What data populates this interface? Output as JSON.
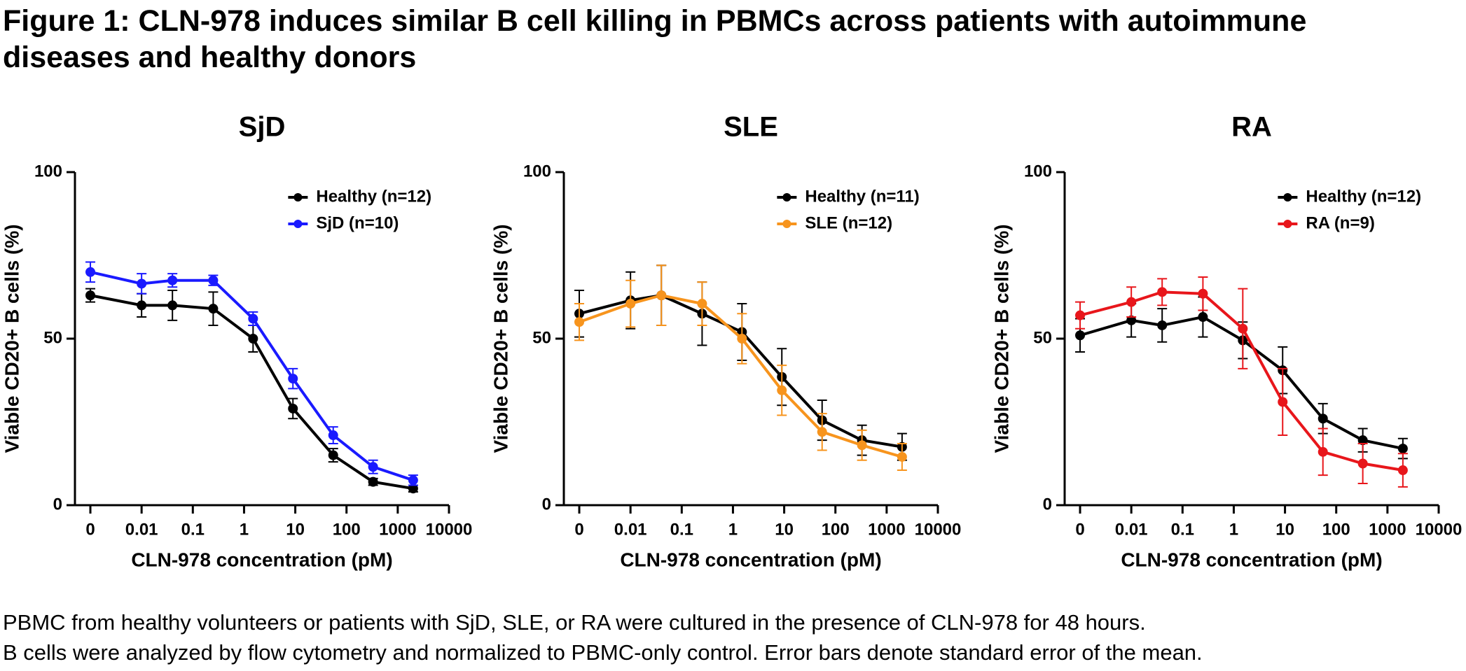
{
  "title": "Figure 1: CLN-978 induces similar B cell killing in PBMCs across patients with autoimmune diseases and healthy donors",
  "footnote": [
    "PBMC from healthy volunteers or patients with SjD, SLE, or RA were cultured in the presence of CLN-978 for 48 hours.",
    "B cells were analyzed by flow cytometry and normalized to PBMC-only control. Error bars denote standard error of the mean."
  ],
  "chart_data": [
    {
      "type": "line",
      "title": "SjD",
      "x_label": "CLN-978 concentration (pM)",
      "y_label": "Viable CD20+ B cells (%)",
      "xscale": "log",
      "xlim": [
        0.0005,
        10000
      ],
      "xticks": [
        {
          "value": 0.001,
          "label": "0"
        },
        0.01,
        0.1,
        1,
        10,
        100,
        1000,
        10000
      ],
      "ylim": [
        0,
        100
      ],
      "yticks": [
        0,
        50,
        100
      ],
      "legend": "upper right",
      "x": [
        0.001,
        0.01,
        0.04,
        0.25,
        1.5,
        9,
        55,
        330,
        2000
      ],
      "series": [
        {
          "name": "Healthy (n=12)",
          "color": "#000000",
          "values": [
            63,
            60,
            60,
            59,
            50,
            29,
            15,
            7,
            5
          ],
          "errors": [
            2,
            3.5,
            4.5,
            5,
            4,
            3,
            2,
            1,
            1
          ]
        },
        {
          "name": "SjD (n=10)",
          "color": "#1a1aff",
          "values": [
            70,
            66.5,
            67.5,
            67.5,
            56,
            38,
            21,
            11.5,
            7.5
          ],
          "errors": [
            3,
            3,
            2,
            1.5,
            2,
            3,
            2.5,
            2,
            1.5
          ]
        }
      ]
    },
    {
      "type": "line",
      "title": "SLE",
      "x_label": "CLN-978 concentration (pM)",
      "y_label": "Viable CD20+ B cells (%)",
      "xscale": "log",
      "xlim": [
        0.0005,
        10000
      ],
      "xticks": [
        {
          "value": 0.001,
          "label": "0"
        },
        0.01,
        0.1,
        1,
        10,
        100,
        1000,
        10000
      ],
      "ylim": [
        0,
        100
      ],
      "yticks": [
        0,
        50,
        100
      ],
      "legend": "upper right",
      "x": [
        0.001,
        0.01,
        0.04,
        0.25,
        1.5,
        9,
        55,
        330,
        2000
      ],
      "series": [
        {
          "name": "Healthy (n=11)",
          "color": "#000000",
          "values": [
            57.5,
            61.5,
            63,
            57.5,
            52,
            38.5,
            25.5,
            19.5,
            17.5
          ],
          "errors": [
            7,
            8.5,
            9,
            9.5,
            8.5,
            8.5,
            6,
            4.5,
            4
          ]
        },
        {
          "name": "SLE (n=12)",
          "color": "#f7941d",
          "values": [
            55,
            60.5,
            63,
            60.5,
            50,
            34.5,
            22,
            18,
            14.5
          ],
          "errors": [
            5.5,
            7,
            9,
            6.5,
            7.5,
            7.5,
            5.5,
            4.5,
            4
          ]
        }
      ]
    },
    {
      "type": "line",
      "title": "RA",
      "x_label": "CLN-978 concentration (pM)",
      "y_label": "Viable CD20+ B cells (%)",
      "xscale": "log",
      "xlim": [
        0.0005,
        10000
      ],
      "xticks": [
        {
          "value": 0.001,
          "label": "0"
        },
        0.01,
        0.1,
        1,
        10,
        100,
        1000,
        10000
      ],
      "ylim": [
        0,
        100
      ],
      "yticks": [
        0,
        50,
        100
      ],
      "legend": "upper right",
      "x": [
        0.001,
        0.01,
        0.04,
        0.25,
        1.5,
        9,
        55,
        330,
        2000
      ],
      "series": [
        {
          "name": "Healthy (n=12)",
          "color": "#000000",
          "values": [
            51,
            55.5,
            54,
            56.5,
            49.5,
            40.5,
            26,
            19.5,
            17
          ],
          "errors": [
            5,
            5,
            5,
            6,
            5.5,
            7,
            4.5,
            3.5,
            3
          ]
        },
        {
          "name": "RA (n=9)",
          "color": "#e8161b",
          "values": [
            57,
            61,
            64,
            63.5,
            53,
            31,
            16,
            12.5,
            10.5
          ],
          "errors": [
            4,
            4.5,
            4,
            5,
            12,
            10,
            7,
            6,
            5
          ]
        }
      ]
    }
  ]
}
